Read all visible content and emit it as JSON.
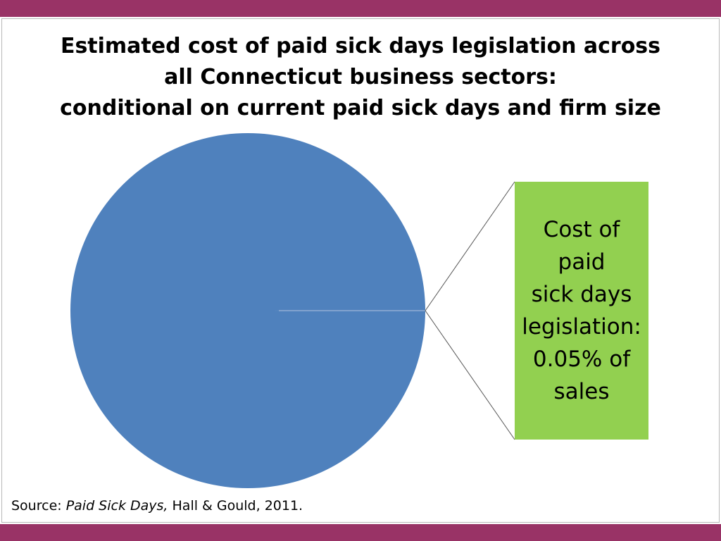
{
  "slide": {
    "colors": {
      "accent_bar": "#993366",
      "pie_fill": "#4f81bd",
      "callout_fill": "#92d050"
    }
  },
  "chart_data": {
    "type": "pie",
    "title": "Estimated cost of paid sick days legislation across all Connecticut business sectors: conditional on current paid sick days and firm size",
    "title_lines": [
      "Estimated cost of paid sick days legislation across",
      "all Connecticut business sectors:",
      "conditional on current paid sick days and firm size"
    ],
    "slices": [
      {
        "label": "",
        "value": 99.95,
        "color": "#4f81bd"
      },
      {
        "label": "Cost of paid sick days legislation: 0.05% of sales",
        "value": 0.05,
        "color": "#92d050"
      }
    ],
    "callout": {
      "lines": [
        "Cost of paid",
        "sick days",
        "legislation:",
        "0.05% of",
        "sales"
      ]
    },
    "legend": "none"
  },
  "source": {
    "prefix": "Source: ",
    "work": "Paid Sick Days,",
    "rest": " Hall & Gould, 2011."
  }
}
